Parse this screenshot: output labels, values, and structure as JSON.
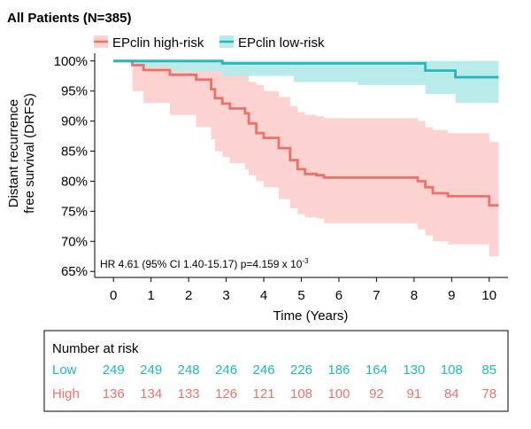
{
  "chart_data": {
    "type": "line",
    "title": "All Patients (N=385)",
    "xlabel": "Time (Years)",
    "ylabel_line1": "Distant recurrence",
    "ylabel_line2": "free survival (DRFS)",
    "xlim": [
      -0.5,
      10.5
    ],
    "ylim": [
      64,
      101
    ],
    "x_ticks": [
      0,
      1,
      2,
      3,
      4,
      5,
      6,
      7,
      8,
      9,
      10
    ],
    "x_tick_labels": [
      "0",
      "1",
      "2",
      "3",
      "4",
      "5",
      "6",
      "7",
      "8",
      "9",
      "10"
    ],
    "y_ticks": [
      65,
      70,
      75,
      80,
      85,
      90,
      95,
      100
    ],
    "y_tick_labels": [
      "65%",
      "70%",
      "75%",
      "80%",
      "85%",
      "90%",
      "95%",
      "100%"
    ],
    "legend_position": "top-left",
    "annotation": {
      "prefix": "HR 4.61 (95% CI 1.40-15.17) p=4.159 x 10",
      "superscript": "-3"
    },
    "series": [
      {
        "name": "EPclin high-risk",
        "color": "#ec716b",
        "band_color": "#fcd3d0",
        "steps": [
          [
            0,
            100
          ],
          [
            0.5,
            99.3
          ],
          [
            0.8,
            98.5
          ],
          [
            1.5,
            97.7
          ],
          [
            2.2,
            96.9
          ],
          [
            2.6,
            95.3
          ],
          [
            2.7,
            93.8
          ],
          [
            2.9,
            92.9
          ],
          [
            3.1,
            92.1
          ],
          [
            3.5,
            91.3
          ],
          [
            3.6,
            89.6
          ],
          [
            3.8,
            88.0
          ],
          [
            4.0,
            87.2
          ],
          [
            4.4,
            85.5
          ],
          [
            4.7,
            83.5
          ],
          [
            4.9,
            82.0
          ],
          [
            5.1,
            81.2
          ],
          [
            5.4,
            81.0
          ],
          [
            5.6,
            80.6
          ],
          [
            8.1,
            80.0
          ],
          [
            8.3,
            79.0
          ],
          [
            8.5,
            78.0
          ],
          [
            8.9,
            77.5
          ],
          [
            10.0,
            76.0
          ],
          [
            10.25,
            76.0
          ]
        ],
        "ci_lower": [
          [
            0,
            100
          ],
          [
            0.5,
            95
          ],
          [
            0.8,
            93
          ],
          [
            1.5,
            91
          ],
          [
            2.2,
            89
          ],
          [
            2.6,
            87
          ],
          [
            2.7,
            85
          ],
          [
            2.9,
            84
          ],
          [
            3.1,
            83
          ],
          [
            3.5,
            82
          ],
          [
            3.6,
            81
          ],
          [
            3.8,
            80
          ],
          [
            4.0,
            79
          ],
          [
            4.4,
            77
          ],
          [
            4.7,
            75.5
          ],
          [
            4.9,
            74.5
          ],
          [
            5.1,
            74
          ],
          [
            5.4,
            73.8
          ],
          [
            5.6,
            73
          ],
          [
            8.1,
            72
          ],
          [
            8.3,
            71
          ],
          [
            8.5,
            70
          ],
          [
            8.9,
            69.5
          ],
          [
            10.0,
            67.5
          ],
          [
            10.25,
            67.5
          ]
        ],
        "ci_upper": [
          [
            0,
            100
          ],
          [
            0.5,
            100
          ],
          [
            0.8,
            100
          ],
          [
            1.5,
            100
          ],
          [
            2.2,
            100
          ],
          [
            2.6,
            99.5
          ],
          [
            2.7,
            99
          ],
          [
            2.9,
            98.5
          ],
          [
            3.1,
            98
          ],
          [
            3.5,
            97.5
          ],
          [
            3.6,
            96.5
          ],
          [
            3.8,
            96
          ],
          [
            4.0,
            95
          ],
          [
            4.4,
            94
          ],
          [
            4.7,
            92.5
          ],
          [
            4.9,
            91.5
          ],
          [
            5.1,
            91
          ],
          [
            5.4,
            90.8
          ],
          [
            5.6,
            90.5
          ],
          [
            8.1,
            90
          ],
          [
            8.3,
            89
          ],
          [
            8.5,
            88.5
          ],
          [
            8.9,
            88
          ],
          [
            10.0,
            86.5
          ],
          [
            10.25,
            86.5
          ]
        ]
      },
      {
        "name": "EPclin low-risk",
        "color": "#20b8b8",
        "band_color": "#b9ebeb",
        "steps": [
          [
            0,
            100
          ],
          [
            2.9,
            99.6
          ],
          [
            8.3,
            98.4
          ],
          [
            9.1,
            97.3
          ],
          [
            10.25,
            97.3
          ]
        ],
        "ci_lower": [
          [
            0,
            100
          ],
          [
            0.5,
            99
          ],
          [
            1.5,
            98.3
          ],
          [
            2.9,
            97.5
          ],
          [
            4.8,
            96.5
          ],
          [
            6.5,
            96
          ],
          [
            8.3,
            94.5
          ],
          [
            9.1,
            93.0
          ],
          [
            10.25,
            93.0
          ]
        ],
        "ci_upper": [
          [
            0,
            100
          ],
          [
            2.9,
            100
          ],
          [
            8.3,
            100
          ],
          [
            9.1,
            100
          ],
          [
            10.25,
            100
          ]
        ]
      }
    ]
  },
  "risk_table": {
    "title": "Number at risk",
    "rows": [
      {
        "label": "Low",
        "color": "#20b8b8",
        "values": [
          249,
          249,
          248,
          246,
          246,
          226,
          186,
          164,
          130,
          108,
          85
        ]
      },
      {
        "label": "High",
        "color": "#ec716b",
        "values": [
          136,
          134,
          133,
          126,
          121,
          108,
          100,
          92,
          91,
          84,
          78
        ]
      }
    ]
  }
}
